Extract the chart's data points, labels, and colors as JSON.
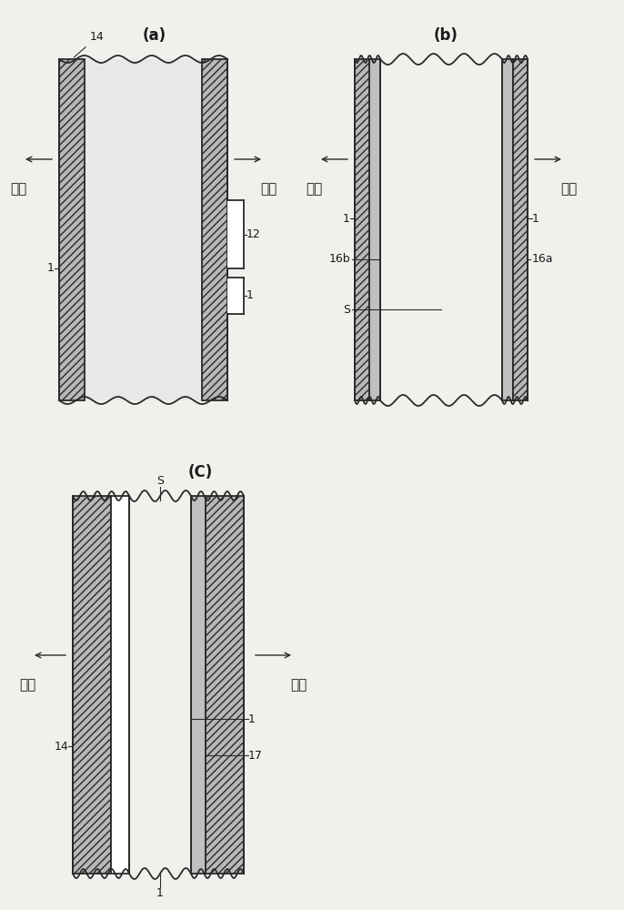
{
  "bg_color": "#f2f0ed",
  "line_color": "#2a2a2a",
  "hatch_color": "#444444",
  "gray_fill": "#c8c8c8",
  "white_fill": "#ffffff",
  "title_a": "(a)",
  "title_b": "(b)",
  "title_c": "(C)",
  "indoor": "户内",
  "outdoor": "户外",
  "label_fontsize": 9,
  "title_fontsize": 12,
  "chinese_fontsize": 11
}
